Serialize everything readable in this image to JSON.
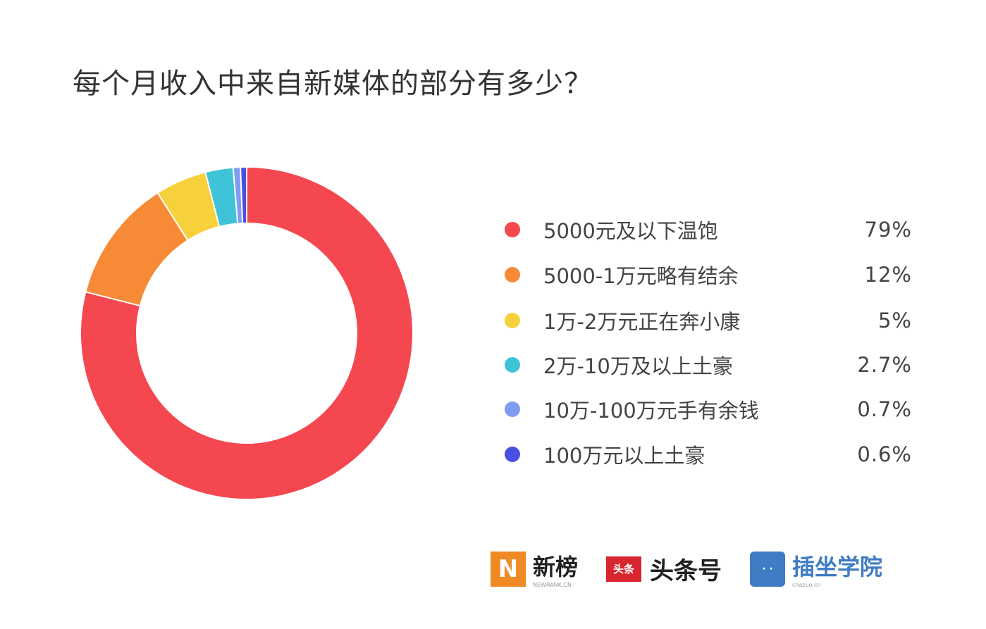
{
  "chart_data": {
    "type": "pie",
    "donut": true,
    "title": "每个月收入中来自新媒体的部分有多少？",
    "legend_position": "right",
    "slices": [
      {
        "name": "5000元及以下温饱",
        "value": 79,
        "label": "79%",
        "color": "#f5474f"
      },
      {
        "name": "5000-1万元略有结余",
        "value": 12,
        "label": "12%",
        "color": "#f68a36"
      },
      {
        "name": "1万-2万元正在奔小康",
        "value": 5,
        "label": "5%",
        "color": "#f7d13c"
      },
      {
        "name": "2万-10万及以上土豪",
        "value": 2.7,
        "label": "2.7%",
        "color": "#3fc3d6"
      },
      {
        "name": "10万-100万元手有余钱",
        "value": 0.7,
        "label": "0.7%",
        "color": "#7f9cf0"
      },
      {
        "name": "100万元以上土豪",
        "value": 0.6,
        "label": "0.6%",
        "color": "#4b4fe0"
      }
    ]
  },
  "logos": {
    "newrank": {
      "name": "新榜",
      "sub": "NEWRANK.CN",
      "color": "#f08a24"
    },
    "toutiao": {
      "name": "头条号",
      "mark": "头条",
      "color": "#d7262e"
    },
    "chazuo": {
      "name": "插坐学院",
      "sub": "chazuo.cn",
      "color": "#3f7cc4"
    }
  }
}
